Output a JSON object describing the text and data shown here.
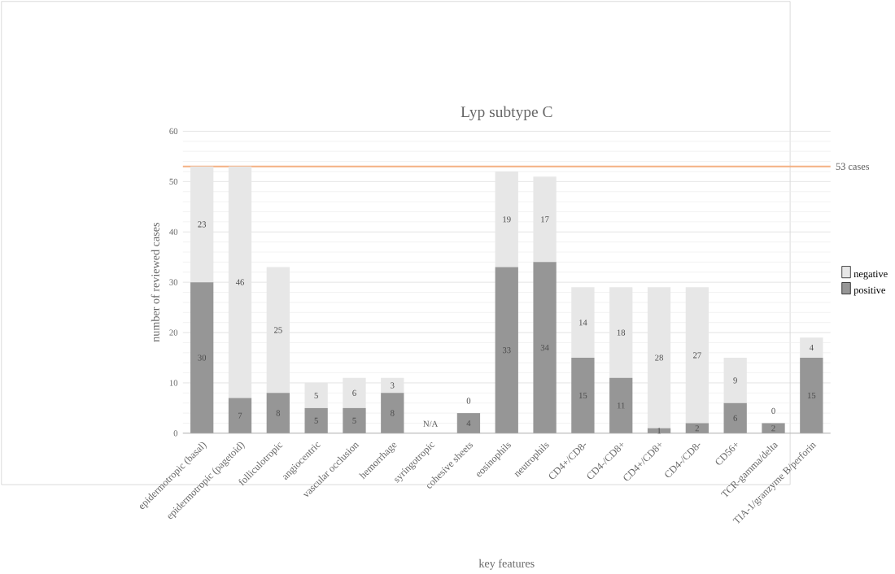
{
  "chart_data": {
    "type": "bar",
    "title": "Lyp subtype C",
    "xlabel": "key features",
    "ylabel": "number of reviewed cases",
    "categories": [
      "epidermotropic (basal)",
      "epidermotropic (pagetoid)",
      "folliculotropic",
      "angiocentric",
      "vascular occlusion",
      "hemorrhage",
      "syringotropic",
      "cohesive sheets",
      "eosinophils",
      "neutrophils",
      "CD4+/CD8-",
      "CD4-/CD8+",
      "CD4+/CD8+",
      "CD4-/CD8-",
      "CD56+",
      "TCR-gamma/delta",
      "TIA-1/granzyme B/perforin"
    ],
    "series": [
      {
        "name": "positive",
        "color": "#969696",
        "values": [
          30,
          7,
          8,
          5,
          5,
          8,
          null,
          4,
          33,
          34,
          15,
          11,
          1,
          2,
          6,
          2,
          15
        ]
      },
      {
        "name": "negative",
        "color": "#e7e7e7",
        "values": [
          23,
          46,
          25,
          5,
          6,
          3,
          null,
          0,
          19,
          17,
          14,
          18,
          28,
          27,
          9,
          0,
          4
        ]
      }
    ],
    "stacked": true,
    "data_labels": true,
    "ylim": [
      0,
      60
    ],
    "yticks": [
      0,
      10,
      20,
      30,
      40,
      50,
      60
    ],
    "grid": "y",
    "legend": "right",
    "ref_lines": [
      {
        "axis": "y",
        "value": 53,
        "label": "53 cases",
        "color": "#f4b183"
      }
    ],
    "annotations": [
      "N/A"
    ]
  }
}
